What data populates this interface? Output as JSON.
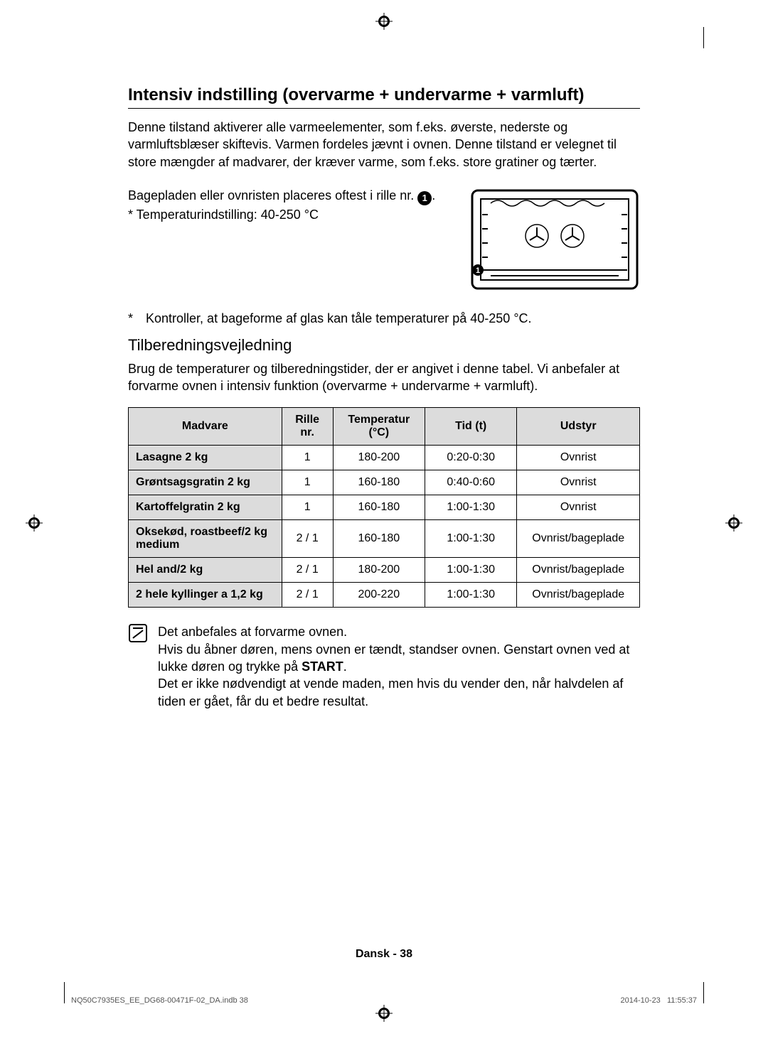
{
  "heading": "Intensiv indstilling (overvarme + undervarme + varmluft)",
  "intro": "Denne tilstand aktiverer alle varmeelementer, som f.eks. øverste, nederste og varmluftsblæser skiftevis. Varmen fordeles jævnt i ovnen. Denne tilstand er velegnet til store mængder af madvarer, der kræver varme, som f.eks. store gratiner og tærter.",
  "placement": {
    "text_before_num": "Bagepladen eller ovnristen placeres oftest i rille nr. ",
    "circled_number": "1",
    "temp_setting": "* Temperaturindstilling: 40-250 °C"
  },
  "glass_note_bullet": "*",
  "glass_note_text": "Kontroller, at bageforme af glas kan tåle temperaturer på 40-250 °C.",
  "subheading": "Tilberedningsvejledning",
  "guide_text": "Brug de temperaturer og tilberedningstider, der er angivet i denne tabel. Vi anbefaler at forvarme ovnen i intensiv funktion (overvarme + undervarme + varmluft).",
  "table": {
    "columns": [
      "Madvare",
      "Rille nr.",
      "Temperatur (°C)",
      "Tid (t)",
      "Udstyr"
    ],
    "col_widths_pct": [
      30,
      10,
      18,
      18,
      24
    ],
    "header_bg": "#dcdcdc",
    "madvare_bg": "#dcdcdc",
    "border_color": "#000000",
    "rows": [
      [
        "Lasagne 2 kg",
        "1",
        "180-200",
        "0:20-0:30",
        "Ovnrist"
      ],
      [
        "Grøntsagsgratin 2 kg",
        "1",
        "160-180",
        "0:40-0:60",
        "Ovnrist"
      ],
      [
        "Kartoffelgratin 2 kg",
        "1",
        "160-180",
        "1:00-1:30",
        "Ovnrist"
      ],
      [
        "Oksekød, roastbeef/2 kg medium",
        "2 / 1",
        "160-180",
        "1:00-1:30",
        "Ovnrist/bageplade"
      ],
      [
        "Hel and/2 kg",
        "2 / 1",
        "180-200",
        "1:00-1:30",
        "Ovnrist/bageplade"
      ],
      [
        "2 hele kyllinger a 1,2 kg",
        "2 / 1",
        "200-220",
        "1:00-1:30",
        "Ovnrist/bageplade"
      ]
    ]
  },
  "note": {
    "line1": "Det anbefales at forvarme ovnen.",
    "line2_before": "Hvis du åbner døren, mens ovnen er tændt, standser ovnen. Genstart ovnen ved at lukke døren og trykke på ",
    "start_word": "START",
    "line2_after": ".",
    "line3": "Det er ikke nødvendigt at vende maden, men hvis du vender den, når halvdelen af tiden er gået, får du et bedre resultat."
  },
  "footer": {
    "page_label": "Dansk - 38",
    "file": "NQ50C7935ES_EE_DG68-00471F-02_DA.indb   38",
    "date": "2014-10-23",
    "time": "11:55:37"
  },
  "oven_diagram": {
    "stroke": "#000000",
    "fill": "#ffffff",
    "shelf_marker_number": "1"
  }
}
